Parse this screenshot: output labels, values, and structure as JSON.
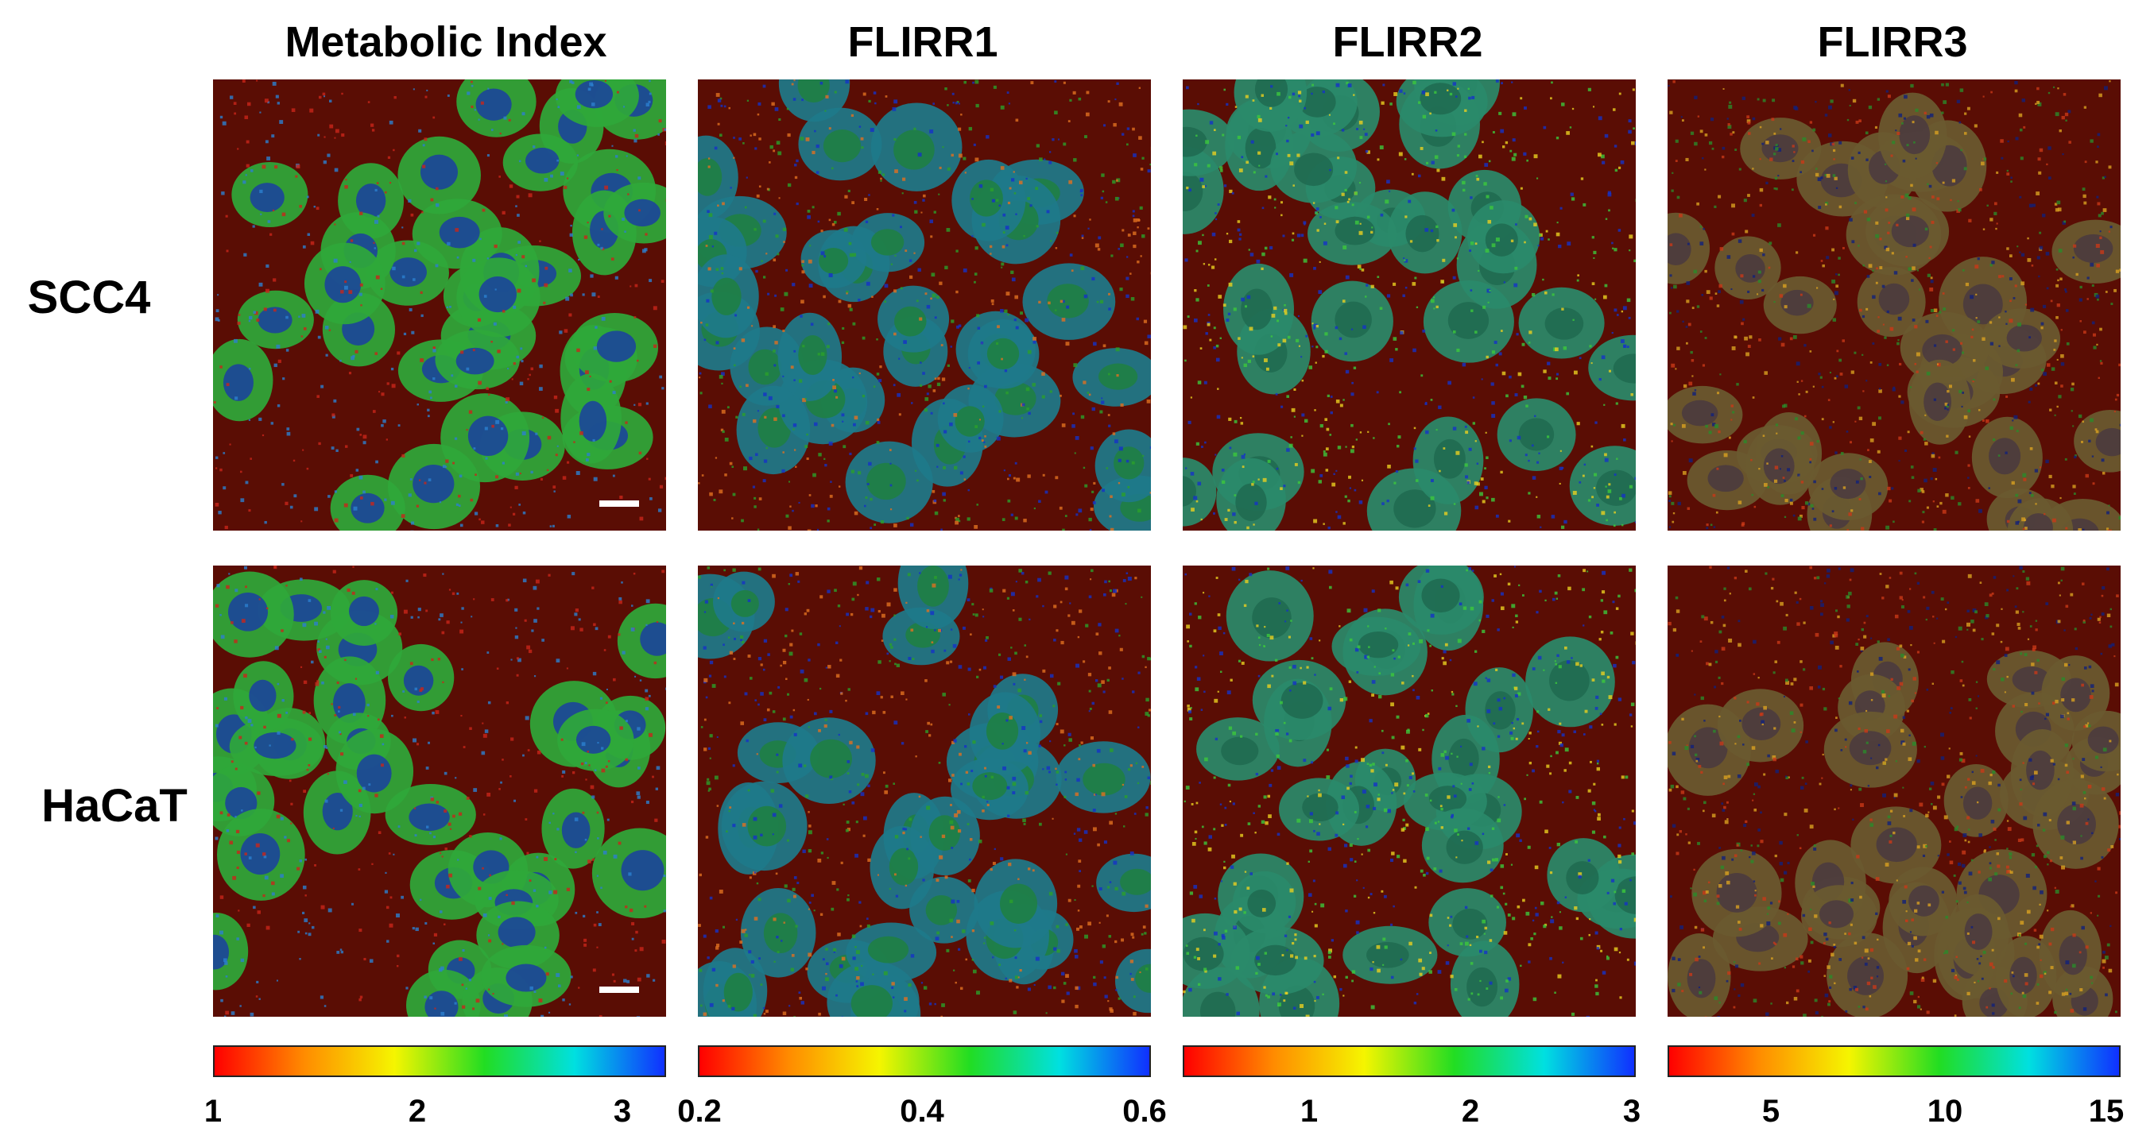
{
  "columns": [
    {
      "title": "Metabolic Index",
      "colorbar_ticks": [
        "1",
        "2",
        "3"
      ]
    },
    {
      "title": "FLIRR1",
      "colorbar_ticks": [
        "0.2",
        "0.4",
        "0.6"
      ]
    },
    {
      "title": "FLIRR2",
      "colorbar_ticks": [
        "1",
        "2",
        "3"
      ]
    },
    {
      "title": "FLIRR3",
      "colorbar_ticks": [
        "5",
        "10",
        "15"
      ]
    }
  ],
  "rows": [
    {
      "label": "SCC4"
    },
    {
      "label": "HaCaT"
    }
  ],
  "colormap": [
    "#ff0000",
    "#ff8c00",
    "#f5f500",
    "#22dd22",
    "#00e0e0",
    "#1030ff"
  ],
  "background_color": "#5a0d04"
}
